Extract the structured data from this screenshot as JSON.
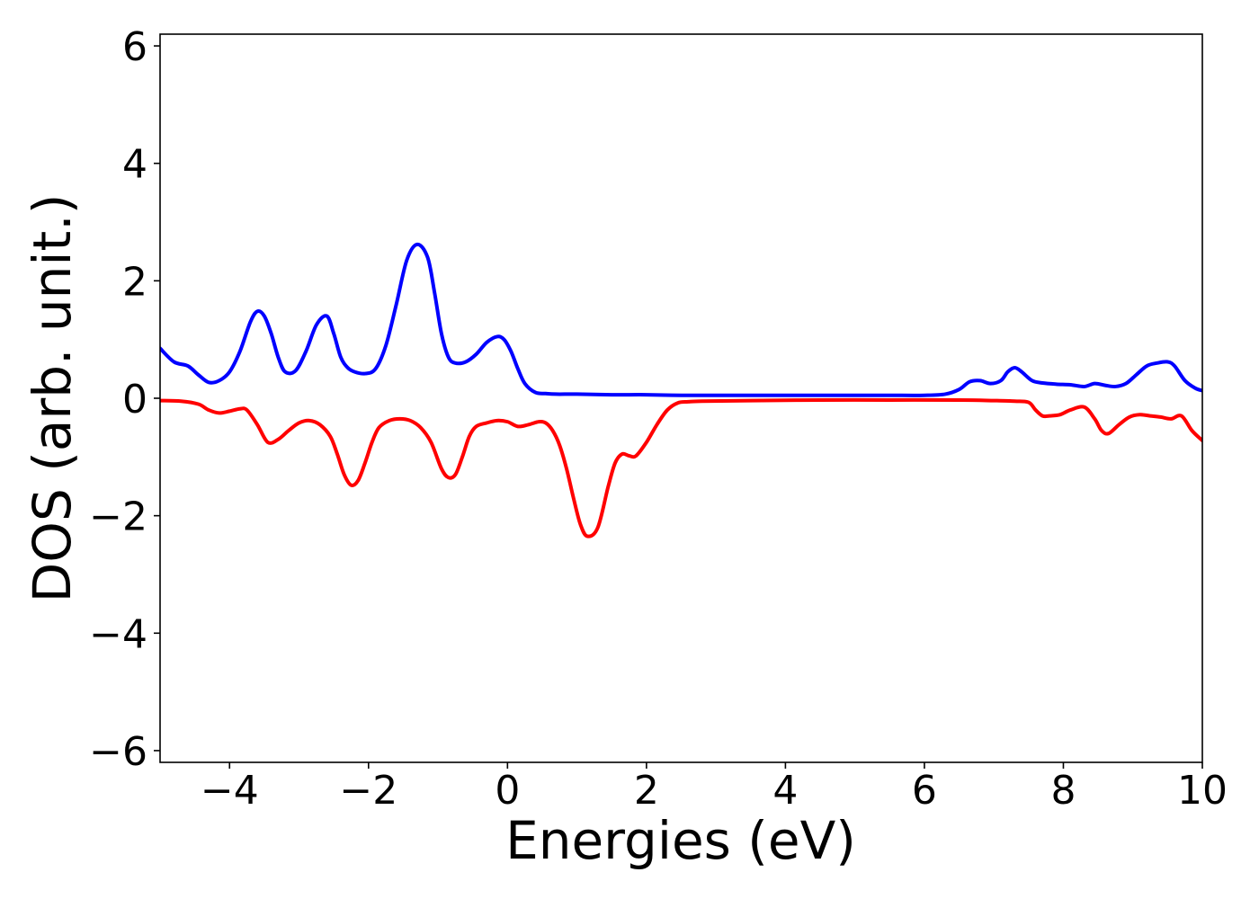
{
  "chart_data": {
    "type": "line",
    "title": "",
    "xlabel": "Energies (eV)",
    "ylabel": "DOS (arb. unit.)",
    "xlim": [
      -5,
      10
    ],
    "ylim": [
      -6.2,
      6.2
    ],
    "xticks": [
      -4,
      -2,
      0,
      2,
      4,
      6,
      8,
      10
    ],
    "xtick_labels": [
      "−4",
      "−2",
      "0",
      "2",
      "4",
      "6",
      "8",
      "10"
    ],
    "yticks": [
      6,
      4,
      2,
      0,
      -2,
      -4,
      -6
    ],
    "ytick_labels": [
      "6",
      "4",
      "2",
      "0",
      "−2",
      "−4",
      "−6"
    ],
    "grid": false,
    "legend": null,
    "series": [
      {
        "color": "#0000ff",
        "x": [
          -5.0,
          -4.8,
          -4.6,
          -4.45,
          -4.3,
          -4.15,
          -4.0,
          -3.85,
          -3.7,
          -3.6,
          -3.5,
          -3.4,
          -3.3,
          -3.2,
          -3.05,
          -2.9,
          -2.75,
          -2.6,
          -2.5,
          -2.4,
          -2.3,
          -2.2,
          -2.05,
          -1.9,
          -1.75,
          -1.6,
          -1.45,
          -1.3,
          -1.15,
          -1.05,
          -0.95,
          -0.85,
          -0.75,
          -0.6,
          -0.45,
          -0.3,
          -0.15,
          -0.05,
          0.05,
          0.15,
          0.25,
          0.4,
          0.55,
          0.7,
          1.0,
          1.5,
          2.0,
          2.5,
          3.0,
          3.5,
          4.0,
          4.5,
          5.0,
          5.5,
          6.0,
          6.3,
          6.5,
          6.65,
          6.8,
          6.95,
          7.1,
          7.2,
          7.3,
          7.4,
          7.55,
          7.7,
          7.9,
          8.1,
          8.3,
          8.45,
          8.6,
          8.75,
          8.9,
          9.05,
          9.2,
          9.35,
          9.5,
          9.6,
          9.75,
          9.9,
          10.0
        ],
        "y": [
          0.85,
          0.62,
          0.55,
          0.4,
          0.27,
          0.3,
          0.45,
          0.8,
          1.3,
          1.48,
          1.4,
          1.1,
          0.7,
          0.45,
          0.47,
          0.8,
          1.25,
          1.4,
          1.1,
          0.7,
          0.52,
          0.45,
          0.42,
          0.5,
          0.9,
          1.6,
          2.35,
          2.62,
          2.4,
          1.8,
          1.1,
          0.7,
          0.6,
          0.62,
          0.75,
          0.95,
          1.05,
          1.0,
          0.8,
          0.5,
          0.25,
          0.1,
          0.08,
          0.07,
          0.07,
          0.06,
          0.06,
          0.05,
          0.05,
          0.05,
          0.05,
          0.05,
          0.05,
          0.05,
          0.05,
          0.07,
          0.15,
          0.28,
          0.3,
          0.25,
          0.3,
          0.45,
          0.52,
          0.45,
          0.3,
          0.26,
          0.24,
          0.23,
          0.2,
          0.25,
          0.22,
          0.2,
          0.25,
          0.4,
          0.55,
          0.6,
          0.62,
          0.55,
          0.3,
          0.17,
          0.13
        ]
      },
      {
        "color": "#ff0000",
        "x": [
          -5.0,
          -4.7,
          -4.45,
          -4.3,
          -4.15,
          -4.0,
          -3.85,
          -3.75,
          -3.6,
          -3.45,
          -3.3,
          -3.15,
          -3.0,
          -2.85,
          -2.7,
          -2.55,
          -2.45,
          -2.35,
          -2.25,
          -2.15,
          -2.05,
          -1.95,
          -1.85,
          -1.7,
          -1.55,
          -1.4,
          -1.25,
          -1.1,
          -0.95,
          -0.85,
          -0.75,
          -0.65,
          -0.55,
          -0.45,
          -0.3,
          -0.15,
          0.0,
          0.15,
          0.3,
          0.45,
          0.55,
          0.65,
          0.75,
          0.85,
          0.95,
          1.05,
          1.15,
          1.3,
          1.45,
          1.55,
          1.65,
          1.75,
          1.85,
          2.0,
          2.15,
          2.3,
          2.45,
          2.6,
          2.8,
          3.5,
          4.5,
          5.5,
          6.5,
          7.0,
          7.3,
          7.5,
          7.6,
          7.7,
          7.8,
          7.95,
          8.1,
          8.3,
          8.45,
          8.55,
          8.65,
          8.8,
          8.95,
          9.1,
          9.25,
          9.4,
          9.55,
          9.7,
          9.85,
          10.0
        ],
        "y": [
          -0.04,
          -0.05,
          -0.1,
          -0.2,
          -0.25,
          -0.22,
          -0.18,
          -0.2,
          -0.45,
          -0.75,
          -0.7,
          -0.55,
          -0.42,
          -0.38,
          -0.45,
          -0.65,
          -0.95,
          -1.3,
          -1.48,
          -1.4,
          -1.1,
          -0.75,
          -0.5,
          -0.38,
          -0.35,
          -0.38,
          -0.5,
          -0.75,
          -1.2,
          -1.35,
          -1.3,
          -1.0,
          -0.65,
          -0.48,
          -0.42,
          -0.38,
          -0.4,
          -0.48,
          -0.45,
          -0.4,
          -0.42,
          -0.55,
          -0.8,
          -1.2,
          -1.7,
          -2.15,
          -2.35,
          -2.2,
          -1.5,
          -1.1,
          -0.95,
          -0.98,
          -0.98,
          -0.75,
          -0.45,
          -0.2,
          -0.08,
          -0.06,
          -0.05,
          -0.04,
          -0.03,
          -0.03,
          -0.03,
          -0.04,
          -0.05,
          -0.07,
          -0.2,
          -0.3,
          -0.3,
          -0.28,
          -0.2,
          -0.15,
          -0.35,
          -0.55,
          -0.6,
          -0.45,
          -0.32,
          -0.28,
          -0.3,
          -0.32,
          -0.35,
          -0.3,
          -0.55,
          -0.72
        ]
      }
    ]
  }
}
